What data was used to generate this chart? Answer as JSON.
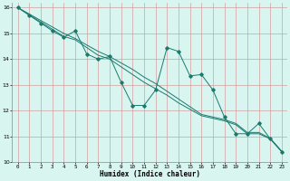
{
  "xlabel": "Humidex (Indice chaleur)",
  "background_color": "#d9f5f0",
  "grid_color": "#c0e8e2",
  "line_color": "#1a7a6e",
  "xlim": [
    -0.5,
    23.5
  ],
  "ylim": [
    10,
    16.2
  ],
  "xticks": [
    0,
    1,
    2,
    3,
    4,
    5,
    6,
    7,
    8,
    9,
    10,
    11,
    12,
    13,
    14,
    15,
    16,
    17,
    18,
    19,
    20,
    21,
    22,
    23
  ],
  "yticks": [
    10,
    11,
    12,
    13,
    14,
    15,
    16
  ],
  "series0": [
    16.0,
    15.7,
    15.4,
    15.1,
    14.85,
    15.1,
    14.2,
    14.0,
    14.1,
    13.1,
    12.2,
    12.2,
    12.8,
    14.45,
    14.3,
    13.35,
    13.4,
    12.8,
    11.75,
    11.1,
    11.1,
    11.5,
    10.9,
    10.4
  ],
  "series1": [
    16.0,
    15.72,
    15.44,
    15.16,
    14.88,
    14.75,
    14.45,
    14.15,
    14.0,
    13.7,
    13.4,
    13.1,
    12.85,
    12.6,
    12.3,
    12.05,
    11.8,
    11.7,
    11.6,
    11.45,
    11.1,
    11.1,
    10.9,
    10.4
  ],
  "series2": [
    16.0,
    15.75,
    15.5,
    15.25,
    15.0,
    14.8,
    14.55,
    14.3,
    14.1,
    13.85,
    13.6,
    13.3,
    13.05,
    12.75,
    12.45,
    12.15,
    11.85,
    11.75,
    11.65,
    11.5,
    11.15,
    11.15,
    10.92,
    10.42
  ]
}
